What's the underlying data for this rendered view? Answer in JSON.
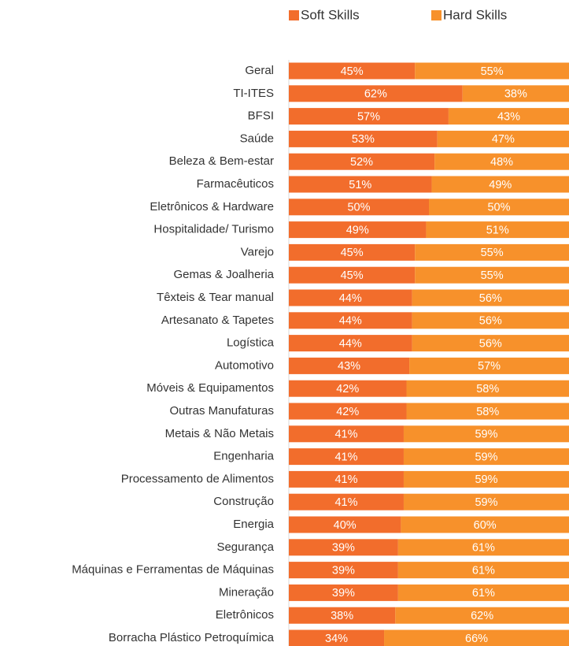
{
  "chart_data": {
    "type": "bar",
    "orientation": "horizontal",
    "stacked": true,
    "categories": [
      "Geral",
      "TI-ITES",
      "BFSI",
      "Saúde",
      "Beleza & Bem-estar",
      "Farmacêuticos",
      "Eletrônicos & Hardware",
      "Hospitalidade/ Turismo",
      "Varejo",
      "Gemas & Joalheria",
      "Têxteis & Tear manual",
      "Artesanato & Tapetes",
      "Logística",
      "Automotivo",
      "Móveis & Equipamentos",
      "Outras Manufaturas",
      "Metais & Não Metais",
      "Engenharia",
      "Processamento de Alimentos",
      "Construção",
      "Energia",
      "Segurança",
      "Máquinas e Ferramentas de Máquinas",
      "Mineração",
      "Eletrônicos",
      "Borracha Plástico Petroquímica"
    ],
    "series": [
      {
        "name": "Soft Skills",
        "color": "#f26d2c",
        "values": [
          45,
          62,
          57,
          53,
          52,
          51,
          50,
          49,
          45,
          45,
          44,
          44,
          44,
          43,
          42,
          42,
          41,
          41,
          41,
          41,
          40,
          39,
          39,
          39,
          38,
          34
        ],
        "value_labels": [
          "45%",
          "62%",
          "57%",
          "53%",
          "52%",
          "51%",
          "50%",
          "49%",
          "45%",
          "45%",
          "44%",
          "44%",
          "44%",
          "43%",
          "42%",
          "42%",
          "41%",
          "41%",
          "41%",
          "41%",
          "40%",
          "39%",
          "39%",
          "39%",
          "38%",
          "34%"
        ]
      },
      {
        "name": "Hard Skills",
        "color": "#f7912b",
        "values": [
          55,
          38,
          43,
          47,
          48,
          49,
          50,
          51,
          55,
          55,
          56,
          56,
          56,
          57,
          58,
          58,
          59,
          59,
          59,
          59,
          60,
          61,
          61,
          61,
          62,
          66
        ],
        "value_labels": [
          "55%",
          "38%",
          "43%",
          "47%",
          "48%",
          "49%",
          "50%",
          "51%",
          "55%",
          "55%",
          "56%",
          "56%",
          "56%",
          "57%",
          "58%",
          "58%",
          "59%",
          "59%",
          "59%",
          "59%",
          "60%",
          "61%",
          "61%",
          "61%",
          "62%",
          "66%"
        ]
      }
    ],
    "xlim": [
      0,
      100
    ],
    "legend": "top"
  }
}
